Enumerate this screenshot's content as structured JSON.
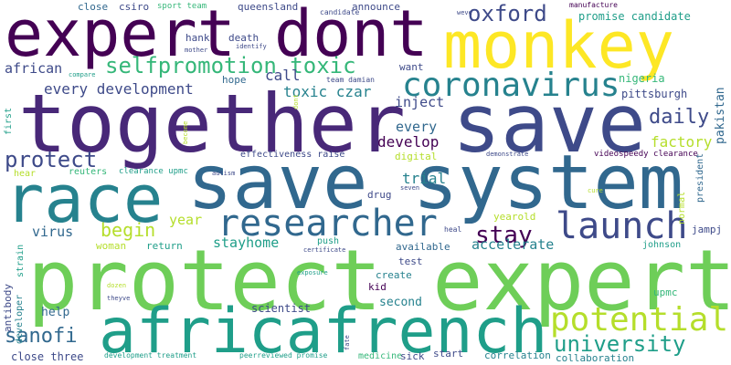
{
  "palette": {
    "purple_dark": "#440154",
    "purple": "#482878",
    "indigo": "#3e4a89",
    "blue": "#31688e",
    "teal": "#26828e",
    "green_teal": "#1f9e89",
    "green": "#35b779",
    "light_green": "#6ece58",
    "lime": "#b5de2b",
    "yellow": "#fde725"
  },
  "words": [
    {
      "text": "together",
      "color": "#482878"
    },
    {
      "text": "save",
      "color": "#3e4a89"
    },
    {
      "text": "save system",
      "color": "#31688e"
    },
    {
      "text": "protect expert",
      "color": "#6ece58"
    },
    {
      "text": "expert dont",
      "color": "#440154"
    },
    {
      "text": "monkey",
      "color": "#fde725"
    },
    {
      "text": "race",
      "color": "#26828e"
    },
    {
      "text": "africafrench",
      "color": "#1f9e89"
    },
    {
      "text": "researcher",
      "color": "#31688e"
    },
    {
      "text": "launch",
      "color": "#3e4a89"
    },
    {
      "text": "coronavirus",
      "color": "#26828e"
    },
    {
      "text": "selfpromotion toxic",
      "color": "#35b779"
    },
    {
      "text": "oxford",
      "color": "#3e4a89"
    },
    {
      "text": "potential",
      "color": "#b5de2b"
    },
    {
      "text": "university",
      "color": "#1f9e89"
    },
    {
      "text": "sanofi",
      "color": "#31688e"
    },
    {
      "text": "stay",
      "color": "#440154"
    },
    {
      "text": "daily",
      "color": "#3e4a89"
    },
    {
      "text": "protect",
      "color": "#3e4a89"
    },
    {
      "text": "every development",
      "color": "#3e4a89"
    },
    {
      "text": "toxic czar",
      "color": "#26828e"
    },
    {
      "text": "call",
      "color": "#3e4a89"
    },
    {
      "text": "begin",
      "color": "#b5de2b"
    },
    {
      "text": "factory",
      "color": "#b5de2b"
    },
    {
      "text": "develop",
      "color": "#440154"
    },
    {
      "text": "trial",
      "color": "#26828e"
    },
    {
      "text": "every",
      "color": "#31688e"
    },
    {
      "text": "inject",
      "color": "#3e4a89"
    },
    {
      "text": "african",
      "color": "#3e4a89"
    },
    {
      "text": "stayhome",
      "color": "#1f9e89"
    },
    {
      "text": "accelerate",
      "color": "#26828e"
    },
    {
      "text": "virus",
      "color": "#31688e"
    },
    {
      "text": "year",
      "color": "#b5de2b"
    },
    {
      "text": "pittsburgh",
      "color": "#3e4a89"
    },
    {
      "text": "nigeria",
      "color": "#35b779"
    },
    {
      "text": "promise candidate",
      "color": "#1f9e89"
    },
    {
      "text": "close",
      "color": "#31688e"
    },
    {
      "text": "csiro",
      "color": "#3e4a89"
    },
    {
      "text": "queensland",
      "color": "#3e4a89"
    },
    {
      "text": "announce",
      "color": "#3e4a89"
    },
    {
      "text": "want",
      "color": "#3e4a89"
    },
    {
      "text": "hope",
      "color": "#31688e"
    },
    {
      "text": "hank",
      "color": "#3e4a89"
    },
    {
      "text": "death",
      "color": "#3e4a89"
    },
    {
      "text": "sport team",
      "color": "#35b779"
    },
    {
      "text": "candidate",
      "color": "#3e4a89"
    },
    {
      "text": "weve",
      "color": "#3e4a89"
    },
    {
      "text": "manufacture",
      "color": "#440154"
    },
    {
      "text": "identify",
      "color": "#3e4a89"
    },
    {
      "text": "mother",
      "color": "#3e4a89"
    },
    {
      "text": "team damian",
      "color": "#3e4a89"
    },
    {
      "text": "compare",
      "color": "#1f9e89"
    },
    {
      "text": "effectiveness raise",
      "color": "#3e4a89"
    },
    {
      "text": "digital",
      "color": "#b5de2b"
    },
    {
      "text": "demonstrate",
      "color": "#3e4a89"
    },
    {
      "text": "videospeedy clearance",
      "color": "#440154"
    },
    {
      "text": "autism",
      "color": "#3e4a89"
    },
    {
      "text": "hear",
      "color": "#b5de2b"
    },
    {
      "text": "reuters",
      "color": "#35b779"
    },
    {
      "text": "clearance upmc",
      "color": "#1f9e89"
    },
    {
      "text": "seven",
      "color": "#3e4a89"
    },
    {
      "text": "drug",
      "color": "#3e4a89"
    },
    {
      "text": "cure",
      "color": "#b5de2b"
    },
    {
      "text": "woman",
      "color": "#b5de2b"
    },
    {
      "text": "return",
      "color": "#1f9e89"
    },
    {
      "text": "heal",
      "color": "#3e4a89"
    },
    {
      "text": "push",
      "color": "#1f9e89"
    },
    {
      "text": "certificate",
      "color": "#3e4a89"
    },
    {
      "text": "yearold",
      "color": "#b5de2b"
    },
    {
      "text": "available",
      "color": "#31688e"
    },
    {
      "text": "johnson",
      "color": "#1f9e89"
    },
    {
      "text": "jampj",
      "color": "#3e4a89"
    },
    {
      "text": "test",
      "color": "#3e4a89"
    },
    {
      "text": "create",
      "color": "#26828e"
    },
    {
      "text": "kid",
      "color": "#440154"
    },
    {
      "text": "exposure",
      "color": "#1f9e89"
    },
    {
      "text": "second",
      "color": "#26828e"
    },
    {
      "text": "upmc",
      "color": "#35b779"
    },
    {
      "text": "help",
      "color": "#31688e"
    },
    {
      "text": "scientist",
      "color": "#3e4a89"
    },
    {
      "text": "dozen",
      "color": "#b5de2b"
    },
    {
      "text": "theyve",
      "color": "#3e4a89"
    },
    {
      "text": "close three",
      "color": "#3e4a89"
    },
    {
      "text": "development treatment",
      "color": "#1f9e89"
    },
    {
      "text": "peerreviewed promise",
      "color": "#1f9e89"
    },
    {
      "text": "medicine",
      "color": "#35b779"
    },
    {
      "text": "sick",
      "color": "#3e4a89"
    },
    {
      "text": "start",
      "color": "#3e4a89"
    },
    {
      "text": "correlation",
      "color": "#26828e"
    },
    {
      "text": "collaboration",
      "color": "#26828e"
    },
    {
      "text": "first",
      "color": "#1f9e89"
    },
    {
      "text": "become",
      "color": "#b5de2b"
    },
    {
      "text": "pakistan",
      "color": "#31688e"
    },
    {
      "text": "president",
      "color": "#31688e"
    },
    {
      "text": "normal",
      "color": "#b5de2b"
    },
    {
      "text": "antibody",
      "color": "#3e4a89"
    },
    {
      "text": "developer",
      "color": "#26828e"
    },
    {
      "text": "strain",
      "color": "#1f9e89"
    },
    {
      "text": "dont",
      "color": "#b5de2b"
    },
    {
      "text": "fate",
      "color": "#3e4a89"
    }
  ]
}
